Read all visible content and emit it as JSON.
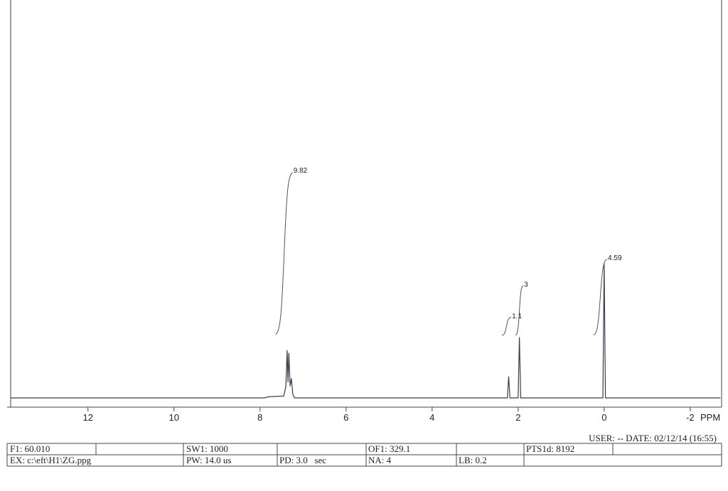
{
  "chart_data": {
    "type": "line",
    "x": [
      13.8,
      7.9,
      7.8,
      7.45,
      7.4,
      7.37,
      7.35,
      7.33,
      7.3,
      7.27,
      7.24,
      7.2,
      2.25,
      2.22,
      2.19,
      2.0,
      1.97,
      1.94,
      0.03,
      0.0,
      -0.03,
      -2.7
    ],
    "values": [
      0,
      0,
      0.3,
      0.5,
      3,
      12.2,
      4,
      11.5,
      3,
      5,
      1,
      0,
      0,
      5.5,
      0,
      0,
      15.5,
      0,
      0,
      34.5,
      0,
      0
    ],
    "color": "#3a3a4a",
    "xlim": [
      13.88,
      -2.73
    ],
    "xticks": [
      12,
      10,
      8,
      6,
      4,
      2,
      0,
      -2
    ],
    "xlabel": "PPM",
    "ylim": [
      0,
      100
    ],
    "integrals": [
      {
        "value": 9.82,
        "from": 7.64,
        "to": 7.24
      },
      {
        "value": 1.1,
        "from": 2.38,
        "to": 2.16
      },
      {
        "value": 3.0,
        "from": 2.06,
        "to": 1.88
      },
      {
        "value": 4.59,
        "from": 0.25,
        "to": -0.07
      }
    ]
  },
  "footer": {
    "user": "USER: -- DATE: 02/12/14 (16:55)",
    "rows": [
      [
        "F1: 60.010",
        "SW1: 1000",
        "OF1: 329.1",
        "PTS1d: 8192"
      ],
      [
        "EX: c:\\eft\\H1\\ZG.ppg",
        "PW: 14.0 us",
        "PD: 3.0   sec",
        "NA: 4",
        "LB: 0.2"
      ]
    ]
  }
}
